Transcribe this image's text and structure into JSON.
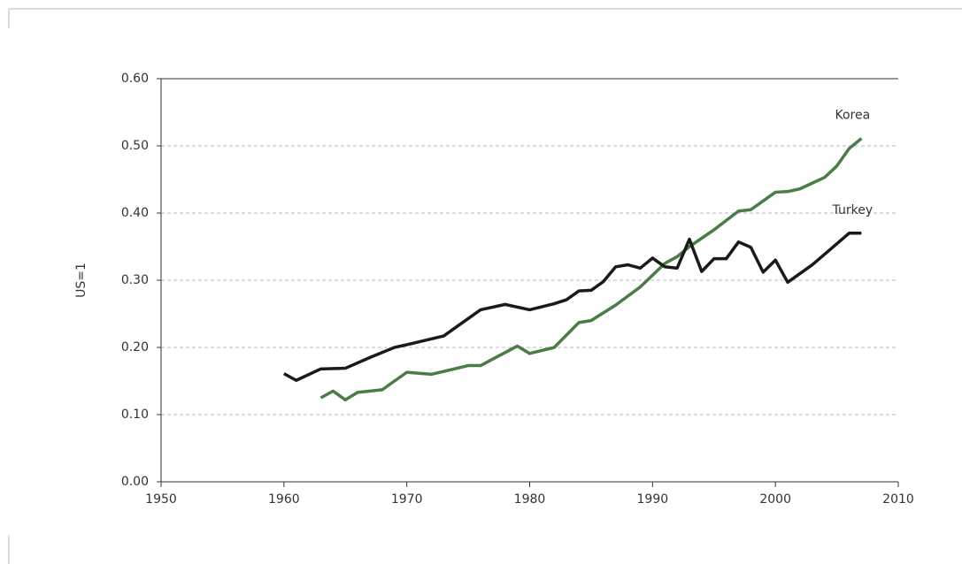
{
  "chart_data": {
    "type": "line",
    "ylabel": "US=1",
    "xlim": [
      1950,
      2010
    ],
    "xticks": [
      1950,
      1960,
      1970,
      1980,
      1990,
      2000,
      2010
    ],
    "ylim": [
      0,
      0.6
    ],
    "yticks": [
      {
        "value": 0,
        "label": "0.00"
      },
      {
        "value": 0.1,
        "label": "0.10"
      },
      {
        "value": 0.2,
        "label": "0.20"
      },
      {
        "value": 0.3,
        "label": "0.30"
      },
      {
        "value": 0.4,
        "label": "0.40"
      },
      {
        "value": 0.5,
        "label": "0.50"
      },
      {
        "value": 0.6,
        "label": "0.60"
      }
    ],
    "grid": true,
    "series": [
      {
        "name": "Korea",
        "color": "#4a7c47",
        "x": [
          1963,
          1964,
          1965,
          1966,
          1968,
          1970,
          1972,
          1975,
          1976,
          1979,
          1980,
          1982,
          1984,
          1985,
          1987,
          1989,
          1991,
          1992,
          1993,
          1995,
          1997,
          1998,
          2000,
          2001,
          2002,
          2004,
          2005,
          2006,
          2007
        ],
        "values": [
          0.125,
          0.135,
          0.122,
          0.133,
          0.137,
          0.163,
          0.16,
          0.173,
          0.173,
          0.202,
          0.191,
          0.2,
          0.237,
          0.24,
          0.263,
          0.29,
          0.325,
          0.335,
          0.35,
          0.375,
          0.403,
          0.405,
          0.431,
          0.432,
          0.436,
          0.453,
          0.47,
          0.496,
          0.511
        ]
      },
      {
        "name": "Turkey",
        "color": "#1a1a1a",
        "x": [
          1960,
          1961,
          1963,
          1965,
          1967,
          1969,
          1970,
          1973,
          1976,
          1978,
          1980,
          1982,
          1983,
          1984,
          1985,
          1986,
          1987,
          1988,
          1989,
          1990,
          1991,
          1992,
          1993,
          1994,
          1995,
          1996,
          1997,
          1998,
          1999,
          2000,
          2001,
          2003,
          2006,
          2007
        ],
        "values": [
          0.161,
          0.151,
          0.168,
          0.169,
          0.185,
          0.2,
          0.204,
          0.217,
          0.256,
          0.264,
          0.256,
          0.265,
          0.271,
          0.284,
          0.285,
          0.298,
          0.32,
          0.323,
          0.318,
          0.333,
          0.32,
          0.318,
          0.361,
          0.313,
          0.332,
          0.332,
          0.357,
          0.349,
          0.312,
          0.33,
          0.297,
          0.323,
          0.37,
          0.37
        ]
      }
    ]
  }
}
